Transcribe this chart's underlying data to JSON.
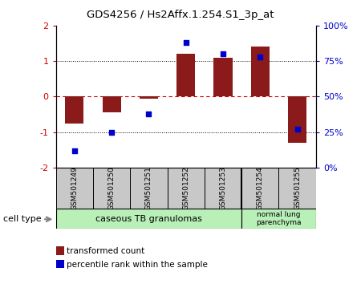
{
  "title": "GDS4256 / Hs2Affx.1.254.S1_3p_at",
  "samples": [
    "GSM501249",
    "GSM501250",
    "GSM501251",
    "GSM501252",
    "GSM501253",
    "GSM501254",
    "GSM501255"
  ],
  "transformed_count": [
    -0.75,
    -0.45,
    -0.05,
    1.2,
    1.1,
    1.4,
    -1.3
  ],
  "percentile_rank": [
    12,
    25,
    38,
    88,
    80,
    78,
    27
  ],
  "ylim_left": [
    -2,
    2
  ],
  "ylim_right": [
    0,
    100
  ],
  "bar_color": "#8B1A1A",
  "dot_color": "#0000CC",
  "background_samples": "#C8C8C8",
  "background_group1": "#B8F0B8",
  "background_group2": "#B8F0B8",
  "group1_label": "caseous TB granulomas",
  "group2_label": "normal lung\nparenchyma",
  "group1_samples": 5,
  "group2_samples": 2,
  "cell_type_label": "cell type",
  "legend_bar": "transformed count",
  "legend_dot": "percentile rank within the sample",
  "right_axis_color": "#0000CC",
  "left_axis_color": "#CC0000",
  "right_tick_labels": [
    "0%",
    "25%",
    "50%",
    "75%",
    "100%"
  ],
  "right_tick_vals": [
    0,
    25,
    50,
    75,
    100
  ],
  "left_tick_vals": [
    -2,
    -1,
    0,
    1,
    2
  ],
  "left_tick_labels": [
    "-2",
    "-1",
    "0",
    "1",
    "2"
  ]
}
